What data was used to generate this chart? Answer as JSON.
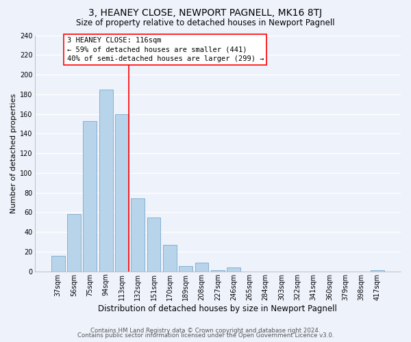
{
  "title": "3, HEANEY CLOSE, NEWPORT PAGNELL, MK16 8TJ",
  "subtitle": "Size of property relative to detached houses in Newport Pagnell",
  "xlabel": "Distribution of detached houses by size in Newport Pagnell",
  "ylabel": "Number of detached properties",
  "bar_labels": [
    "37sqm",
    "56sqm",
    "75sqm",
    "94sqm",
    "113sqm",
    "132sqm",
    "151sqm",
    "170sqm",
    "189sqm",
    "208sqm",
    "227sqm",
    "246sqm",
    "265sqm",
    "284sqm",
    "303sqm",
    "322sqm",
    "341sqm",
    "360sqm",
    "379sqm",
    "398sqm",
    "417sqm"
  ],
  "bar_values": [
    16,
    58,
    153,
    185,
    160,
    74,
    55,
    27,
    5,
    9,
    1,
    4,
    0,
    0,
    0,
    0,
    0,
    0,
    0,
    0,
    1
  ],
  "bar_color": "#b8d4ea",
  "bar_edge_color": "#7aa8cc",
  "vline_color": "red",
  "annotation_box_text": "3 HEANEY CLOSE: 116sqm\n← 59% of detached houses are smaller (441)\n40% of semi-detached houses are larger (299) →",
  "ylim": [
    0,
    240
  ],
  "yticks": [
    0,
    20,
    40,
    60,
    80,
    100,
    120,
    140,
    160,
    180,
    200,
    220,
    240
  ],
  "footer_line1": "Contains HM Land Registry data © Crown copyright and database right 2024.",
  "footer_line2": "Contains public sector information licensed under the Open Government Licence v3.0.",
  "bg_color": "#eef2fb",
  "grid_color": "#ffffff",
  "title_fontsize": 10,
  "subtitle_fontsize": 8.5,
  "xlabel_fontsize": 8.5,
  "ylabel_fontsize": 8,
  "tick_fontsize": 7,
  "ann_fontsize": 7.5,
  "footer_fontsize": 6.2
}
